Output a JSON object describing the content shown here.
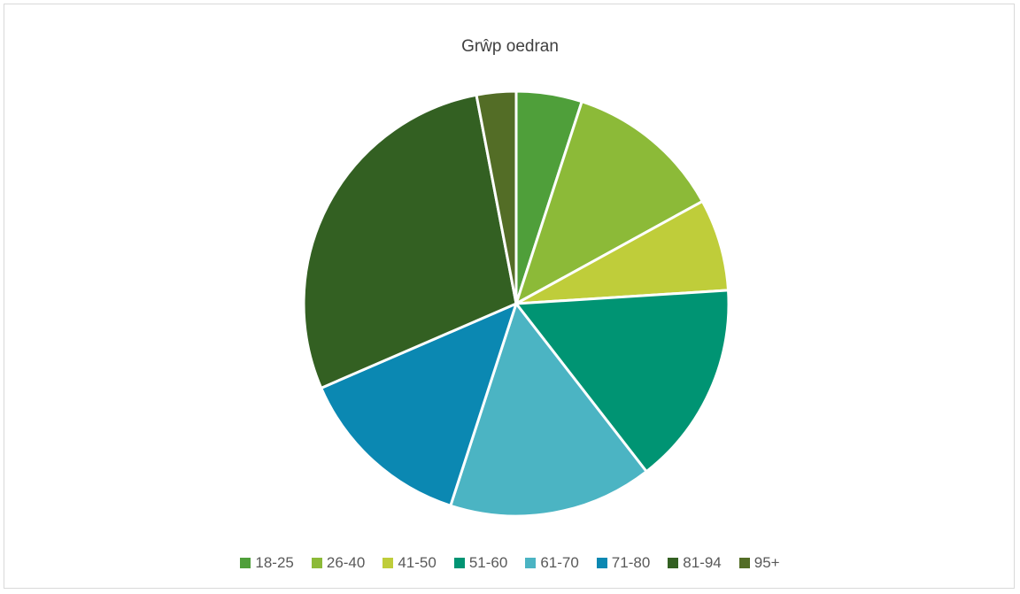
{
  "chart_data": {
    "type": "pie",
    "title": "Grŵp oedran",
    "legend_position": "bottom",
    "slices": [
      {
        "label": "18-25",
        "value": 5.0,
        "color": "#4f9f3a"
      },
      {
        "label": "26-40",
        "value": 12.0,
        "color": "#8cba38"
      },
      {
        "label": "41-50",
        "value": 7.0,
        "color": "#bfcd3a"
      },
      {
        "label": "51-60",
        "value": 15.5,
        "color": "#009473"
      },
      {
        "label": "61-70",
        "value": 15.5,
        "color": "#4bb4c3"
      },
      {
        "label": "71-80",
        "value": 13.5,
        "color": "#0b88b2"
      },
      {
        "label": "81-94",
        "value": 28.5,
        "color": "#336022"
      },
      {
        "label": "95+",
        "value": 3.0,
        "color": "#536d26"
      }
    ]
  }
}
